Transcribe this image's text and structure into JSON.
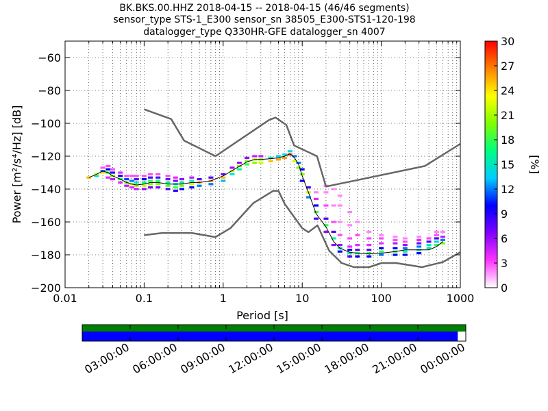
{
  "title": {
    "line1": "BK.BKS.00.HHZ   2018-04-15 -- 2018-04-15  (46/46 segments)",
    "line2": "sensor_type STS-1_E300 sensor_sn 38505_E300-STS1-120-198",
    "line3": "datalogger_type Q330HR-GFE datalogger_sn 4007"
  },
  "colors": {
    "noise_model": "#666666",
    "mean_curve": "#000000",
    "timeline_top": "#008000",
    "timeline_bottom": "#0000ff",
    "grid": "#000000"
  },
  "chart_data": [
    {
      "type": "heatmap",
      "x_scale": "log",
      "xlabel": "Period [s]",
      "ylabel": "Power [m²/s⁴/Hz] [dB]",
      "xlim": [
        0.01,
        1000
      ],
      "ylim": [
        -200,
        -50
      ],
      "xticks": [
        0.01,
        0.1,
        1,
        10,
        100,
        1000
      ],
      "xtick_labels": [
        "0.01",
        "0.1",
        "1",
        "10",
        "100",
        "1000"
      ],
      "yticks": [
        -200,
        -180,
        -160,
        -140,
        -120,
        -100,
        -80,
        -60
      ],
      "ytick_labels": [
        "−200",
        "−180",
        "−160",
        "−140",
        "−120",
        "−100",
        "−80",
        "−60"
      ],
      "grid": true,
      "colorbar": {
        "label": "[%]",
        "range": [
          0,
          30
        ],
        "ticks": [
          0,
          3,
          6,
          9,
          12,
          15,
          18,
          21,
          24,
          27,
          30
        ],
        "colormap": [
          "#ffffff",
          "#ff33ff",
          "#8000ff",
          "#0000ff",
          "#00ccff",
          "#00ff80",
          "#80ff00",
          "#ffff00",
          "#ff8000",
          "#ff0000"
        ]
      },
      "new_high_noise_model": {
        "periods": [
          0.1,
          0.22,
          0.32,
          0.8,
          3.8,
          4.6,
          6.3,
          7.9,
          15.4,
          20,
          354.8,
          1000
        ],
        "db": [
          -91.5,
          -97.4,
          -110.5,
          -120,
          -98,
          -96.5,
          -101,
          -113.5,
          -120,
          -138.5,
          -126,
          -112.5
        ]
      },
      "new_low_noise_model": {
        "periods": [
          0.1,
          0.17,
          0.4,
          0.8,
          1.24,
          2.4,
          4.3,
          5,
          6,
          10,
          12,
          15.6,
          21.9,
          31.6,
          45,
          70,
          101,
          154,
          328,
          600,
          1000
        ],
        "db": [
          -168,
          -166.7,
          -166.7,
          -169.2,
          -163.7,
          -148.6,
          -141.1,
          -141.1,
          -149,
          -163.8,
          -166.2,
          -162.1,
          -177.5,
          -185,
          -187.5,
          -187.5,
          -185,
          -185,
          -187.5,
          -184.4,
          -178.4
        ]
      },
      "mean_curve": {
        "periods": [
          0.02,
          0.025,
          0.03,
          0.035,
          0.04,
          0.05,
          0.06,
          0.07,
          0.08,
          0.1,
          0.12,
          0.15,
          0.2,
          0.3,
          0.4,
          0.5,
          0.7,
          1,
          1.5,
          2,
          2.5,
          3,
          4,
          5,
          6,
          7,
          8,
          9,
          10,
          12,
          15,
          20,
          25,
          30,
          40,
          50,
          70,
          100,
          150,
          200,
          300,
          400,
          500,
          600
        ],
        "db": [
          -133,
          -131,
          -129,
          -130,
          -132,
          -134,
          -136,
          -137,
          -137.5,
          -137,
          -136,
          -136,
          -137,
          -137,
          -136,
          -136,
          -135,
          -132,
          -127,
          -123.5,
          -122,
          -122,
          -121.5,
          -121,
          -120,
          -118.5,
          -121,
          -125,
          -132,
          -142,
          -155,
          -163,
          -172,
          -176,
          -178.5,
          -179,
          -179.5,
          -179,
          -178,
          -177,
          -177,
          -177,
          -175,
          -172
        ]
      },
      "psd_distribution": [
        {
          "period": 0.02,
          "db": [
            -133
          ],
          "pct": [
            25
          ]
        },
        {
          "period": 0.025,
          "db": [
            -132,
            -131
          ],
          "pct": [
            15,
            22
          ]
        },
        {
          "period": 0.03,
          "db": [
            -130,
            -129,
            -127
          ],
          "pct": [
            24,
            12,
            3
          ]
        },
        {
          "period": 0.035,
          "db": [
            -133,
            -130,
            -128,
            -126
          ],
          "pct": [
            4,
            18,
            10,
            3
          ]
        },
        {
          "period": 0.04,
          "db": [
            -134,
            -132,
            -130,
            -128
          ],
          "pct": [
            5,
            20,
            9,
            3
          ]
        },
        {
          "period": 0.05,
          "db": [
            -136,
            -134,
            -132,
            -130
          ],
          "pct": [
            4,
            18,
            10,
            4
          ]
        },
        {
          "period": 0.06,
          "db": [
            -138,
            -136,
            -134,
            -132
          ],
          "pct": [
            5,
            20,
            11,
            3
          ]
        },
        {
          "period": 0.07,
          "db": [
            -139,
            -137,
            -135,
            -132
          ],
          "pct": [
            4,
            22,
            12,
            3
          ]
        },
        {
          "period": 0.08,
          "db": [
            -140,
            -138,
            -136,
            -134,
            -132
          ],
          "pct": [
            5,
            21,
            15,
            8,
            3
          ]
        },
        {
          "period": 0.1,
          "db": [
            -140,
            -138,
            -136,
            -134,
            -132
          ],
          "pct": [
            6,
            22,
            17,
            10,
            3
          ]
        },
        {
          "period": 0.12,
          "db": [
            -139,
            -137,
            -135,
            -133,
            -131
          ],
          "pct": [
            7,
            20,
            18,
            8,
            3
          ]
        },
        {
          "period": 0.15,
          "db": [
            -139,
            -137,
            -135,
            -133,
            -131
          ],
          "pct": [
            7,
            20,
            17,
            8,
            3
          ]
        },
        {
          "period": 0.2,
          "db": [
            -140,
            -138,
            -136,
            -134,
            -132
          ],
          "pct": [
            8,
            19,
            16,
            7,
            3
          ]
        },
        {
          "period": 0.25,
          "db": [
            -141,
            -139,
            -137,
            -135,
            -133
          ],
          "pct": [
            9,
            18,
            15,
            7,
            4
          ]
        },
        {
          "period": 0.3,
          "db": [
            -140,
            -138,
            -136,
            -134
          ],
          "pct": [
            10,
            20,
            16,
            6
          ]
        },
        {
          "period": 0.4,
          "db": [
            -139,
            -137,
            -135,
            -133
          ],
          "pct": [
            10,
            22,
            15,
            5
          ]
        },
        {
          "period": 0.5,
          "db": [
            -138,
            -136,
            -134
          ],
          "pct": [
            12,
            25,
            8
          ]
        },
        {
          "period": 0.7,
          "db": [
            -137,
            -135,
            -133
          ],
          "pct": [
            12,
            26,
            8
          ]
        },
        {
          "period": 1.0,
          "db": [
            -135,
            -133,
            -131
          ],
          "pct": [
            13,
            25,
            7
          ]
        },
        {
          "period": 1.3,
          "db": [
            -131,
            -129,
            -127
          ],
          "pct": [
            15,
            22,
            6
          ]
        },
        {
          "period": 1.6,
          "db": [
            -128,
            -126,
            -124
          ],
          "pct": [
            16,
            20,
            6
          ]
        },
        {
          "period": 2.0,
          "db": [
            -125,
            -123,
            -121
          ],
          "pct": [
            18,
            20,
            6
          ]
        },
        {
          "period": 2.5,
          "db": [
            -124,
            -122,
            -120
          ],
          "pct": [
            20,
            22,
            5
          ]
        },
        {
          "period": 3.0,
          "db": [
            -124,
            -122,
            -120
          ],
          "pct": [
            22,
            20,
            5
          ]
        },
        {
          "period": 4.0,
          "db": [
            -123,
            -121
          ],
          "pct": [
            25,
            15
          ]
        },
        {
          "period": 5.0,
          "db": [
            -122,
            -120
          ],
          "pct": [
            26,
            14
          ]
        },
        {
          "period": 6.0,
          "db": [
            -121,
            -119
          ],
          "pct": [
            26,
            14
          ]
        },
        {
          "period": 7.0,
          "db": [
            -119,
            -117
          ],
          "pct": [
            28,
            14
          ]
        },
        {
          "period": 8.0,
          "db": [
            -123,
            -120
          ],
          "pct": [
            22,
            12
          ]
        },
        {
          "period": 9.0,
          "db": [
            -127,
            -124
          ],
          "pct": [
            20,
            12
          ]
        },
        {
          "period": 10.0,
          "db": [
            -135,
            -131,
            -128
          ],
          "pct": [
            10,
            20,
            10
          ]
        },
        {
          "period": 12.0,
          "db": [
            -145,
            -142,
            -139
          ],
          "pct": [
            12,
            22,
            8
          ]
        },
        {
          "period": 15.0,
          "db": [
            -158,
            -154,
            -150,
            -146,
            -142
          ],
          "pct": [
            8,
            18,
            10,
            4,
            2
          ]
        },
        {
          "period": 20.0,
          "db": [
            -166,
            -162,
            -158,
            -150,
            -142,
            -138
          ],
          "pct": [
            6,
            18,
            8,
            3,
            2,
            2
          ]
        },
        {
          "period": 25.0,
          "db": [
            -174,
            -170,
            -166,
            -160,
            -150,
            -140
          ],
          "pct": [
            6,
            16,
            8,
            3,
            2,
            2
          ]
        },
        {
          "period": 30.0,
          "db": [
            -178,
            -176,
            -174,
            -168,
            -160,
            -150,
            -144
          ],
          "pct": [
            10,
            16,
            6,
            3,
            2,
            2,
            2
          ]
        },
        {
          "period": 40.0,
          "db": [
            -181,
            -179,
            -177,
            -175,
            -170,
            -162,
            -154
          ],
          "pct": [
            8,
            16,
            10,
            4,
            3,
            2,
            2
          ]
        },
        {
          "period": 50.0,
          "db": [
            -181,
            -179,
            -177,
            -174,
            -168,
            -160
          ],
          "pct": [
            10,
            18,
            8,
            4,
            3,
            2
          ]
        },
        {
          "period": 70.0,
          "db": [
            -181,
            -179,
            -177,
            -174,
            -170,
            -166
          ],
          "pct": [
            10,
            18,
            8,
            4,
            3,
            2
          ]
        },
        {
          "period": 100.0,
          "db": [
            -180,
            -178,
            -176,
            -173,
            -170,
            -168
          ],
          "pct": [
            12,
            18,
            10,
            4,
            3,
            2
          ]
        },
        {
          "period": 150.0,
          "db": [
            -180,
            -178,
            -176,
            -173,
            -171,
            -169
          ],
          "pct": [
            10,
            18,
            10,
            5,
            3,
            2
          ]
        },
        {
          "period": 200.0,
          "db": [
            -180,
            -178,
            -176,
            -174,
            -172,
            -170
          ],
          "pct": [
            10,
            16,
            12,
            6,
            3,
            2
          ]
        },
        {
          "period": 300.0,
          "db": [
            -179,
            -177,
            -175,
            -173,
            -171,
            -169
          ],
          "pct": [
            10,
            15,
            12,
            7,
            4,
            2
          ]
        },
        {
          "period": 400.0,
          "db": [
            -176,
            -174,
            -172,
            -170
          ],
          "pct": [
            16,
            15,
            8,
            3
          ]
        },
        {
          "period": 500.0,
          "db": [
            -174,
            -172,
            -170,
            -168,
            -166
          ],
          "pct": [
            18,
            14,
            8,
            3,
            2
          ]
        },
        {
          "period": 600.0,
          "db": [
            -173,
            -171,
            -169,
            -166
          ],
          "pct": [
            20,
            12,
            5,
            2
          ]
        }
      ]
    },
    {
      "type": "bar",
      "description_role": "data-availability timeline",
      "xtick_labels": [
        "03:00:00",
        "06:00:00",
        "09:00:00",
        "12:00:00",
        "15:00:00",
        "18:00:00",
        "21:00:00",
        "00:00:00"
      ],
      "tracks": [
        {
          "coverage_start": 0,
          "coverage_end": 1.0
        },
        {
          "coverage_start": 0,
          "coverage_end": 0.979
        }
      ]
    }
  ]
}
